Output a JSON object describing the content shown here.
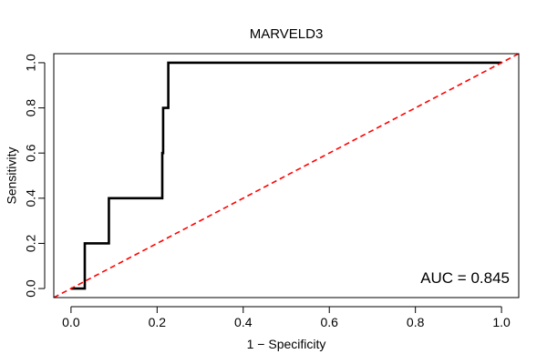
{
  "chart_data": {
    "type": "line",
    "title": "MARVELD3",
    "xlabel": "1 − Specificity",
    "ylabel": "Sensitivity",
    "xlim": [
      -0.04,
      1.04
    ],
    "ylim": [
      -0.04,
      1.04
    ],
    "x_ticks": [
      0.0,
      0.2,
      0.4,
      0.6,
      0.8,
      1.0
    ],
    "x_tick_labels": [
      "0.0",
      "0.2",
      "0.4",
      "0.6",
      "0.8",
      "1.0"
    ],
    "y_ticks": [
      0.0,
      0.2,
      0.4,
      0.6,
      0.8,
      1.0
    ],
    "y_tick_labels": [
      "0.0",
      "0.2",
      "0.4",
      "0.6",
      "0.8",
      "1.0"
    ],
    "grid": false,
    "series": [
      {
        "name": "ROC",
        "color": "#000000",
        "style": "solid",
        "x": [
          0.0,
          0.032,
          0.032,
          0.088,
          0.088,
          0.212,
          0.212,
          0.214,
          0.214,
          0.226,
          0.226,
          1.0
        ],
        "y": [
          0.0,
          0.0,
          0.2,
          0.2,
          0.4,
          0.4,
          0.6,
          0.6,
          0.8,
          0.8,
          1.0,
          1.0
        ]
      },
      {
        "name": "Reference",
        "color": "#ff0000",
        "style": "dashed",
        "x": [
          -0.04,
          1.04
        ],
        "y": [
          -0.04,
          1.04
        ]
      }
    ],
    "annotation": "AUC = 0.845"
  }
}
